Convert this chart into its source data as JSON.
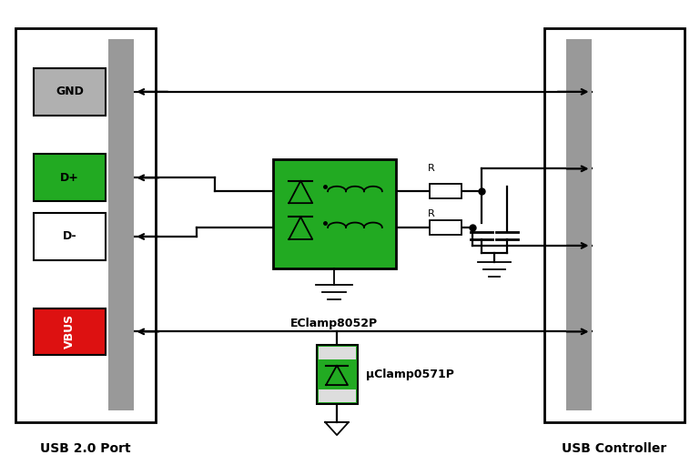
{
  "fig_width": 7.69,
  "fig_height": 5.11,
  "bg_color": "#ffffff",
  "connector_bar_color": "#999999",
  "left_box_label": "USB 2.0 Port",
  "right_box_label": "USB Controller",
  "pins": [
    {
      "label": "GND",
      "color": "#b0b0b0",
      "text_color": "#000000"
    },
    {
      "label": "D+",
      "color": "#22aa22",
      "text_color": "#000000"
    },
    {
      "label": "D-",
      "color": "#ffffff",
      "text_color": "#000000"
    },
    {
      "label": "VBUS",
      "color": "#dd1111",
      "text_color": "#ffffff"
    }
  ],
  "eclamp_label": "EClamp8052P",
  "uclamp_label": "μClamp0571P",
  "line_color": "#000000",
  "green_color": "#22aa22"
}
